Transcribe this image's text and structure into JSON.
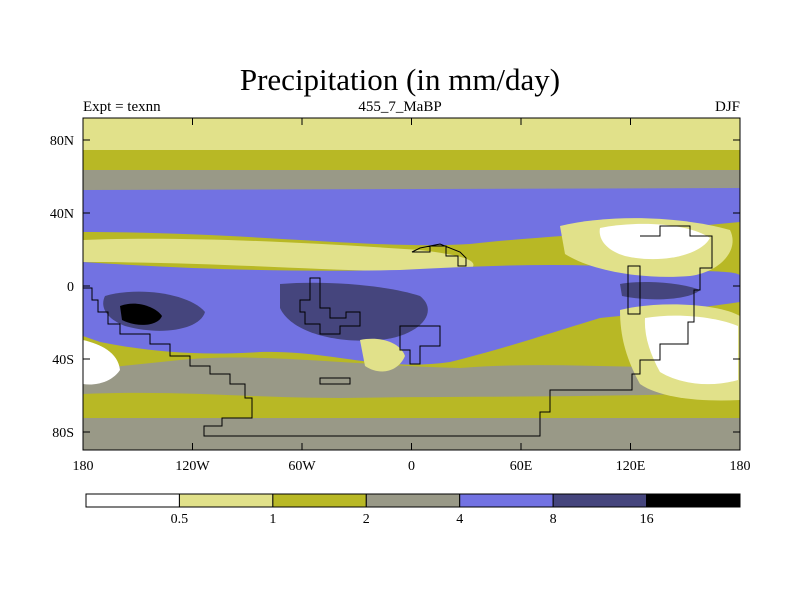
{
  "title": "Precipitation (in mm/day)",
  "left_label": "Expt = texnn",
  "center_label": "455_7_MaBP",
  "right_label": "DJF",
  "y_ticks": [
    {
      "label": "80N",
      "lat": 80
    },
    {
      "label": "40N",
      "lat": 40
    },
    {
      "label": "0",
      "lat": 0
    },
    {
      "label": "40S",
      "lat": -40
    },
    {
      "label": "80S",
      "lat": -80
    }
  ],
  "x_ticks": [
    {
      "label": "180",
      "lon": -180
    },
    {
      "label": "120W",
      "lon": -120
    },
    {
      "label": "60W",
      "lon": -60
    },
    {
      "label": "0",
      "lon": 0
    },
    {
      "label": "60E",
      "lon": 60
    },
    {
      "label": "120E",
      "lon": 120
    },
    {
      "label": "180",
      "lon": 180
    }
  ],
  "colorbar": {
    "colors": [
      "#ffffff",
      "#e1e18a",
      "#b8b825",
      "#999987",
      "#7272e2",
      "#45457d",
      "#000000"
    ],
    "labels": [
      "0.5",
      "1",
      "2",
      "4",
      "8",
      "16"
    ]
  }
}
